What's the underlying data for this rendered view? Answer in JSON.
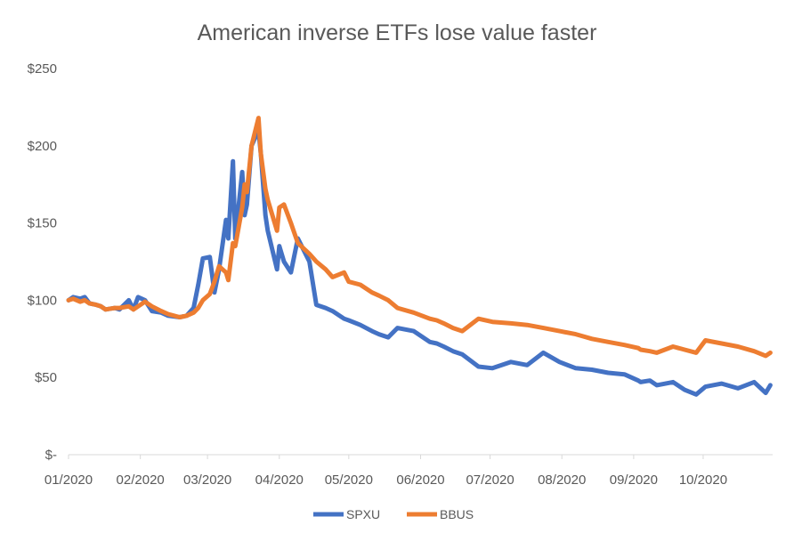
{
  "chart_data": {
    "type": "line",
    "title": "American inverse ETFs lose value faster",
    "xlabel": "",
    "ylabel": "",
    "x_ticks": [
      "01/2020",
      "02/2020",
      "03/2020",
      "04/2020",
      "05/2020",
      "06/2020",
      "07/2020",
      "08/2020",
      "09/2020",
      "10/2020"
    ],
    "y_ticks": [
      "$-",
      "$50",
      "$100",
      "$150",
      "$200",
      "$250"
    ],
    "ylim": [
      0,
      250
    ],
    "xlim": [
      "2020-01-01",
      "2020-10-31"
    ],
    "grid": false,
    "legend": "bottom",
    "series": [
      {
        "name": "SPXU",
        "color": "#4472C4",
        "x": [
          "2020-01-01",
          "2020-01-03",
          "2020-01-06",
          "2020-01-08",
          "2020-01-10",
          "2020-01-13",
          "2020-01-15",
          "2020-01-17",
          "2020-01-21",
          "2020-01-23",
          "2020-01-27",
          "2020-01-29",
          "2020-01-31",
          "2020-02-03",
          "2020-02-06",
          "2020-02-10",
          "2020-02-13",
          "2020-02-18",
          "2020-02-21",
          "2020-02-24",
          "2020-02-26",
          "2020-02-28",
          "2020-03-02",
          "2020-03-04",
          "2020-03-06",
          "2020-03-09",
          "2020-03-10",
          "2020-03-12",
          "2020-03-13",
          "2020-03-16",
          "2020-03-17",
          "2020-03-18",
          "2020-03-20",
          "2020-03-23",
          "2020-03-24",
          "2020-03-26",
          "2020-03-27",
          "2020-03-31",
          "2020-04-01",
          "2020-04-03",
          "2020-04-06",
          "2020-04-09",
          "2020-04-14",
          "2020-04-17",
          "2020-04-21",
          "2020-04-24",
          "2020-04-29",
          "2020-05-01",
          "2020-05-06",
          "2020-05-11",
          "2020-05-14",
          "2020-05-18",
          "2020-05-22",
          "2020-05-29",
          "2020-06-05",
          "2020-06-08",
          "2020-06-11",
          "2020-06-15",
          "2020-06-19",
          "2020-06-26",
          "2020-07-02",
          "2020-07-10",
          "2020-07-17",
          "2020-07-24",
          "2020-07-31",
          "2020-08-07",
          "2020-08-14",
          "2020-08-21",
          "2020-08-28",
          "2020-09-03",
          "2020-09-04",
          "2020-09-08",
          "2020-09-11",
          "2020-09-18",
          "2020-09-23",
          "2020-09-28",
          "2020-10-02",
          "2020-10-09",
          "2020-10-16",
          "2020-10-23",
          "2020-10-28",
          "2020-10-30"
        ],
        "values": [
          100,
          102,
          101,
          102,
          98,
          97,
          96,
          94,
          95,
          94,
          100,
          94,
          102,
          100,
          93,
          92,
          90,
          89,
          90,
          95,
          110,
          127,
          128,
          105,
          120,
          152,
          140,
          190,
          140,
          183,
          155,
          162,
          200,
          210,
          195,
          155,
          145,
          120,
          135,
          125,
          118,
          140,
          125,
          97,
          95,
          93,
          88,
          87,
          84,
          80,
          78,
          76,
          82,
          80,
          73,
          72,
          70,
          67,
          65,
          57,
          56,
          60,
          58,
          66,
          60,
          56,
          55,
          53,
          52,
          48,
          47,
          48,
          45,
          47,
          42,
          39,
          44,
          46,
          43,
          47,
          40,
          45
        ]
      },
      {
        "name": "BBUS",
        "color": "#ED7D31",
        "x": [
          "2020-01-01",
          "2020-01-03",
          "2020-01-06",
          "2020-01-08",
          "2020-01-10",
          "2020-01-13",
          "2020-01-15",
          "2020-01-17",
          "2020-01-21",
          "2020-01-23",
          "2020-01-27",
          "2020-01-29",
          "2020-01-31",
          "2020-02-03",
          "2020-02-06",
          "2020-02-10",
          "2020-02-13",
          "2020-02-18",
          "2020-02-21",
          "2020-02-24",
          "2020-02-26",
          "2020-02-28",
          "2020-03-02",
          "2020-03-04",
          "2020-03-06",
          "2020-03-09",
          "2020-03-10",
          "2020-03-12",
          "2020-03-13",
          "2020-03-16",
          "2020-03-17",
          "2020-03-18",
          "2020-03-20",
          "2020-03-23",
          "2020-03-24",
          "2020-03-26",
          "2020-03-27",
          "2020-03-31",
          "2020-04-01",
          "2020-04-03",
          "2020-04-06",
          "2020-04-09",
          "2020-04-14",
          "2020-04-17",
          "2020-04-21",
          "2020-04-24",
          "2020-04-29",
          "2020-05-01",
          "2020-05-06",
          "2020-05-11",
          "2020-05-14",
          "2020-05-18",
          "2020-05-22",
          "2020-05-29",
          "2020-06-05",
          "2020-06-08",
          "2020-06-11",
          "2020-06-15",
          "2020-06-19",
          "2020-06-26",
          "2020-07-02",
          "2020-07-10",
          "2020-07-17",
          "2020-07-24",
          "2020-07-31",
          "2020-08-07",
          "2020-08-14",
          "2020-08-21",
          "2020-08-28",
          "2020-09-03",
          "2020-09-04",
          "2020-09-08",
          "2020-09-11",
          "2020-09-18",
          "2020-09-23",
          "2020-09-28",
          "2020-10-02",
          "2020-10-09",
          "2020-10-16",
          "2020-10-23",
          "2020-10-28",
          "2020-10-30"
        ],
        "values": [
          100,
          101,
          99,
          100,
          98,
          97,
          96,
          94,
          95,
          95,
          96,
          94,
          96,
          99,
          96,
          93,
          91,
          89,
          90,
          92,
          95,
          100,
          104,
          112,
          122,
          118,
          113,
          137,
          135,
          160,
          175,
          170,
          200,
          218,
          195,
          172,
          165,
          145,
          160,
          162,
          150,
          137,
          130,
          125,
          120,
          115,
          118,
          112,
          110,
          105,
          103,
          100,
          95,
          92,
          88,
          87,
          85,
          82,
          80,
          88,
          86,
          85,
          84,
          82,
          80,
          78,
          75,
          73,
          71,
          69,
          68,
          67,
          66,
          70,
          68,
          66,
          74,
          72,
          70,
          67,
          64,
          66
        ]
      }
    ]
  }
}
